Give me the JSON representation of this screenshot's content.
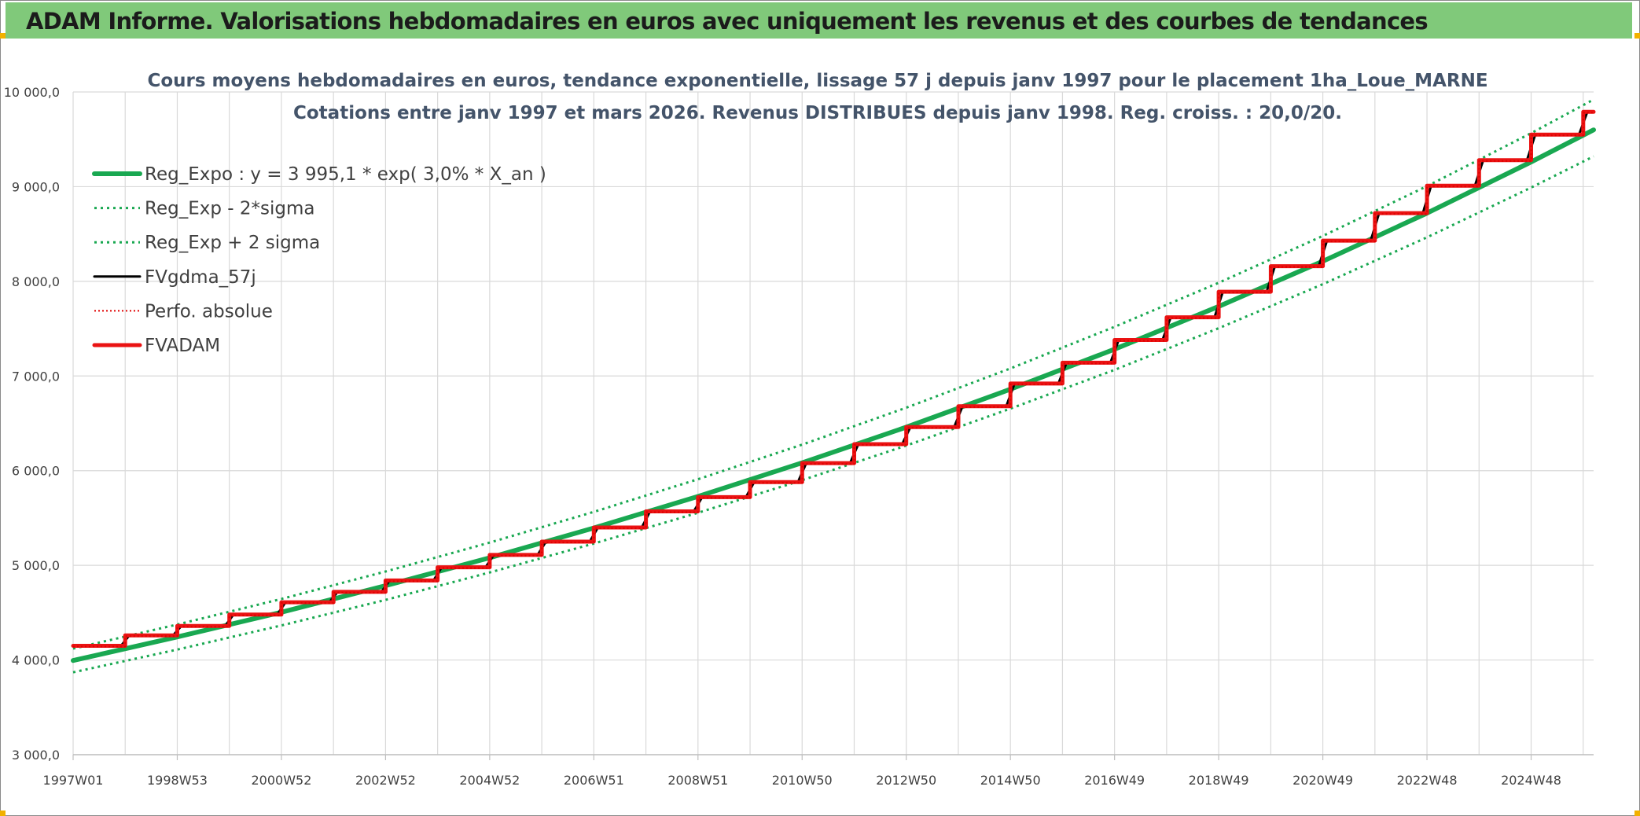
{
  "banner": {
    "title": "ADAM Informe. Valorisations hebdomadaires en euros avec uniquement les revenus et des courbes de tendances"
  },
  "colors": {
    "banner_bg": "#80c97a",
    "trend": "#19a851",
    "fv_gdma": "#000000",
    "perfo": "#e00000",
    "fvadam": "#ea1313",
    "corner_accent": "#f2b100",
    "grid": "#d9d9d9"
  },
  "chart_data": {
    "type": "line",
    "title_line1": "Cours moyens hebdomadaires en euros, tendance exponentielle, lissage 57 j depuis janv 1997 pour le placement 1ha_Loue_MARNE",
    "title_line2": "Cotations entre janv 1997 et mars 2026. Revenus DISTRIBUES depuis janv 1998. Reg. croiss. : 20,0/20.",
    "xlabel": "",
    "ylabel": "",
    "ylim": [
      3000,
      10000
    ],
    "xlim": [
      1997.0,
      2026.2
    ],
    "y_ticks": [
      {
        "value": 3000,
        "label": "3 000,0"
      },
      {
        "value": 4000,
        "label": "4 000,0"
      },
      {
        "value": 5000,
        "label": "5 000,0"
      },
      {
        "value": 6000,
        "label": "6 000,0"
      },
      {
        "value": 7000,
        "label": "7 000,0"
      },
      {
        "value": 8000,
        "label": "8 000,0"
      },
      {
        "value": 9000,
        "label": "9 000,0"
      },
      {
        "value": 10000,
        "label": "10 000,0"
      }
    ],
    "x_ticks": [
      {
        "value": 1997.0,
        "label": "1997W01"
      },
      {
        "value": 1999.0,
        "label": "1998W53"
      },
      {
        "value": 2001.0,
        "label": "2000W52"
      },
      {
        "value": 2003.0,
        "label": "2002W52"
      },
      {
        "value": 2005.0,
        "label": "2004W52"
      },
      {
        "value": 2007.0,
        "label": "2006W51"
      },
      {
        "value": 2009.0,
        "label": "2008W51"
      },
      {
        "value": 2011.0,
        "label": "2010W50"
      },
      {
        "value": 2013.0,
        "label": "2012W50"
      },
      {
        "value": 2015.0,
        "label": "2014W50"
      },
      {
        "value": 2017.0,
        "label": "2016W49"
      },
      {
        "value": 2019.0,
        "label": "2018W49"
      },
      {
        "value": 2021.0,
        "label": "2020W49"
      },
      {
        "value": 2023.0,
        "label": "2022W48"
      },
      {
        "value": 2025.0,
        "label": "2024W48"
      }
    ],
    "grid": true,
    "legend_position": "top-left",
    "legend": [
      {
        "key": "reg_expo",
        "label": "Reg_Expo : y = 3 995,1 * exp( 3,0% *  X_an )",
        "color": "#19a851",
        "style": "solid",
        "width": 6
      },
      {
        "key": "reg_minus",
        "label": "Reg_Exp - 2*sigma",
        "color": "#19a851",
        "style": "dotted",
        "width": 3
      },
      {
        "key": "reg_plus",
        "label": "Reg_Exp + 2 sigma",
        "color": "#19a851",
        "style": "dotted",
        "width": 3
      },
      {
        "key": "fv_gdma",
        "label": "FVgdma_57j",
        "color": "#000000",
        "style": "solid",
        "width": 3
      },
      {
        "key": "perfo",
        "label": "Perfo. absolue",
        "color": "#e00000",
        "style": "dotted",
        "width": 2
      },
      {
        "key": "fvadam",
        "label": "FVADAM",
        "color": "#ea1313",
        "style": "solid",
        "width": 5
      }
    ],
    "series": [
      {
        "key": "reg_expo",
        "x": [
          1997.0,
          1999.0,
          2001.0,
          2003.0,
          2005.0,
          2007.0,
          2009.0,
          2011.0,
          2013.0,
          2015.0,
          2017.0,
          2019.0,
          2021.0,
          2023.0,
          2025.0,
          2026.2
        ],
        "y": [
          3995,
          4244,
          4505,
          4785,
          5080,
          5395,
          5728,
          6083,
          6459,
          6860,
          7283,
          7735,
          8212,
          8720,
          9261,
          9600
        ]
      },
      {
        "key": "reg_minus",
        "x": [
          1997.0,
          1999.0,
          2001.0,
          2003.0,
          2005.0,
          2007.0,
          2009.0,
          2011.0,
          2013.0,
          2015.0,
          2017.0,
          2019.0,
          2021.0,
          2023.0,
          2025.0,
          2026.2
        ],
        "y": [
          3870,
          4110,
          4365,
          4635,
          4925,
          5230,
          5555,
          5900,
          6265,
          6655,
          7065,
          7505,
          7970,
          8465,
          8990,
          9320
        ]
      },
      {
        "key": "reg_plus",
        "x": [
          1997.0,
          1999.0,
          2001.0,
          2003.0,
          2005.0,
          2007.0,
          2009.0,
          2011.0,
          2013.0,
          2015.0,
          2017.0,
          2019.0,
          2021.0,
          2023.0,
          2025.0,
          2026.2
        ],
        "y": [
          4120,
          4375,
          4645,
          4935,
          5240,
          5565,
          5910,
          6275,
          6665,
          7080,
          7520,
          7985,
          8480,
          9005,
          9565,
          9920
        ]
      },
      {
        "key": "fvadam",
        "step_years": [
          1997,
          1998,
          1999,
          2000,
          2001,
          2002,
          2003,
          2004,
          2005,
          2006,
          2007,
          2008,
          2009,
          2010,
          2011,
          2012,
          2013,
          2014,
          2015,
          2016,
          2017,
          2018,
          2019,
          2020,
          2021,
          2022,
          2023,
          2024,
          2025,
          2026
        ],
        "levels": [
          4150,
          4260,
          4360,
          4480,
          4610,
          4720,
          4840,
          4980,
          5110,
          5250,
          5400,
          5570,
          5720,
          5880,
          6080,
          6280,
          6460,
          6680,
          6920,
          7140,
          7380,
          7620,
          7890,
          8160,
          8430,
          8720,
          9010,
          9280,
          9550,
          9790
        ]
      },
      {
        "key": "fv_gdma",
        "smoothing_days": 57,
        "source": "fvadam"
      }
    ]
  }
}
